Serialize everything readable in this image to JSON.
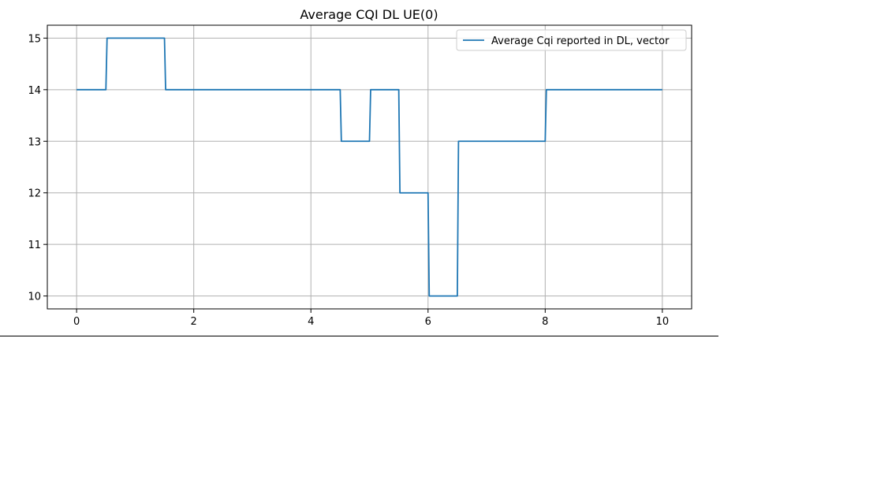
{
  "chart_data": {
    "type": "line",
    "title": "Average CQI DL UE(0)",
    "xlabel": "",
    "ylabel": "",
    "xlim": [
      -0.5,
      10.5
    ],
    "ylim": [
      9.75,
      15.25
    ],
    "xticks": [
      0,
      2,
      4,
      6,
      8,
      10
    ],
    "yticks": [
      10,
      11,
      12,
      13,
      14,
      15
    ],
    "grid": true,
    "legend_position": "top-right",
    "series": [
      {
        "name": "Average Cqi reported in DL, vector",
        "color": "#1f77b4",
        "x": [
          0,
          0.5,
          0.52,
          1.5,
          1.52,
          4.5,
          4.52,
          5.0,
          5.02,
          5.5,
          5.52,
          6.0,
          6.02,
          6.5,
          6.52,
          8.0,
          8.02,
          10.0
        ],
        "y": [
          14,
          14,
          15,
          15,
          14,
          14,
          13,
          13,
          14,
          14,
          12,
          12,
          10,
          10,
          13,
          13,
          14,
          14
        ]
      }
    ]
  }
}
